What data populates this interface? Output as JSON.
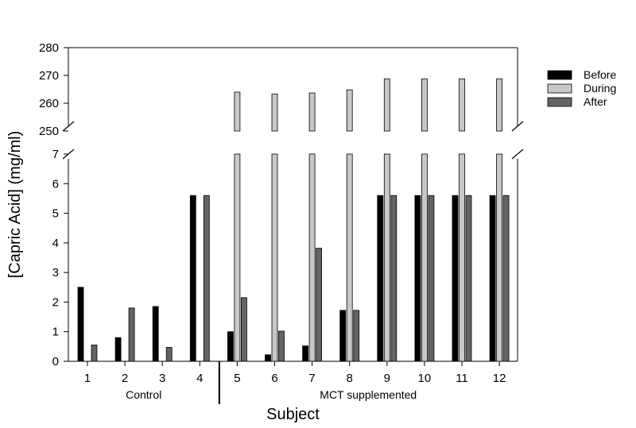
{
  "chart_data": {
    "type": "bar",
    "xlabel": "Subject",
    "ylabel": "[Capric Acid] (mg/ml)",
    "categories": [
      "1",
      "2",
      "3",
      "4",
      "5",
      "6",
      "7",
      "8",
      "9",
      "10",
      "11",
      "12"
    ],
    "groups": [
      {
        "label": "Control",
        "subjects": [
          "1",
          "2",
          "3",
          "4"
        ]
      },
      {
        "label": "MCT supplemented",
        "subjects": [
          "5",
          "6",
          "7",
          "8",
          "9",
          "10",
          "11",
          "12"
        ]
      }
    ],
    "y_axis": {
      "broken": true,
      "lower_range": [
        0,
        7
      ],
      "upper_range": [
        250,
        280
      ],
      "lower_ticks": [
        "0",
        "1",
        "2",
        "3",
        "4",
        "5",
        "6",
        "7"
      ],
      "upper_ticks": [
        "250",
        "260",
        "270",
        "280"
      ]
    },
    "series": [
      {
        "name": "Before",
        "color": "#000000",
        "values": [
          2.5,
          0.8,
          1.85,
          5.6,
          1.0,
          0.22,
          0.52,
          1.72,
          5.6,
          5.6,
          5.6,
          5.6
        ]
      },
      {
        "name": "During",
        "color": "#c8c8c8",
        "values": [
          null,
          null,
          null,
          null,
          264,
          263.3,
          263.7,
          264.8,
          268.8,
          268.8,
          268.8,
          268.8
        ]
      },
      {
        "name": "After",
        "color": "#646464",
        "values": [
          0.55,
          1.8,
          0.47,
          5.6,
          2.15,
          1.02,
          3.82,
          1.72,
          5.6,
          5.6,
          5.6,
          5.6
        ]
      }
    ],
    "legend_position": "top-right",
    "grid": false
  }
}
